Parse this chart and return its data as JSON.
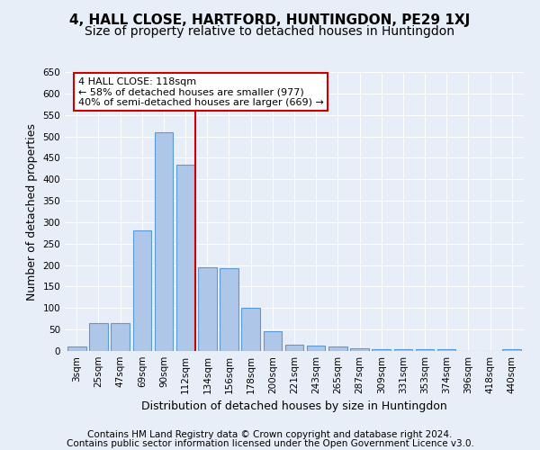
{
  "title": "4, HALL CLOSE, HARTFORD, HUNTINGDON, PE29 1XJ",
  "subtitle": "Size of property relative to detached houses in Huntingdon",
  "xlabel": "Distribution of detached houses by size in Huntingdon",
  "ylabel": "Number of detached properties",
  "categories": [
    "3sqm",
    "25sqm",
    "47sqm",
    "69sqm",
    "90sqm",
    "112sqm",
    "134sqm",
    "156sqm",
    "178sqm",
    "200sqm",
    "221sqm",
    "243sqm",
    "265sqm",
    "287sqm",
    "309sqm",
    "331sqm",
    "353sqm",
    "374sqm",
    "396sqm",
    "418sqm",
    "440sqm"
  ],
  "values": [
    10,
    65,
    65,
    280,
    510,
    435,
    195,
    193,
    100,
    46,
    15,
    13,
    10,
    7,
    5,
    5,
    5,
    5,
    0,
    0,
    5
  ],
  "bar_color": "#aec6e8",
  "bar_edge_color": "#5b9bd5",
  "vline_x": 5.45,
  "vline_color": "#cc0000",
  "annotation_line1": "4 HALL CLOSE: 118sqm",
  "annotation_line2": "← 58% of detached houses are smaller (977)",
  "annotation_line3": "40% of semi-detached houses are larger (669) →",
  "annotation_box_color": "#ffffff",
  "annotation_box_edge": "#cc0000",
  "ylim": [
    0,
    650
  ],
  "yticks": [
    0,
    50,
    100,
    150,
    200,
    250,
    300,
    350,
    400,
    450,
    500,
    550,
    600,
    650
  ],
  "footer1": "Contains HM Land Registry data © Crown copyright and database right 2024.",
  "footer2": "Contains public sector information licensed under the Open Government Licence v3.0.",
  "bg_color": "#e8eef7",
  "title_fontsize": 11,
  "subtitle_fontsize": 10,
  "xlabel_fontsize": 9,
  "ylabel_fontsize": 9,
  "tick_fontsize": 7.5,
  "footer_fontsize": 7.5
}
